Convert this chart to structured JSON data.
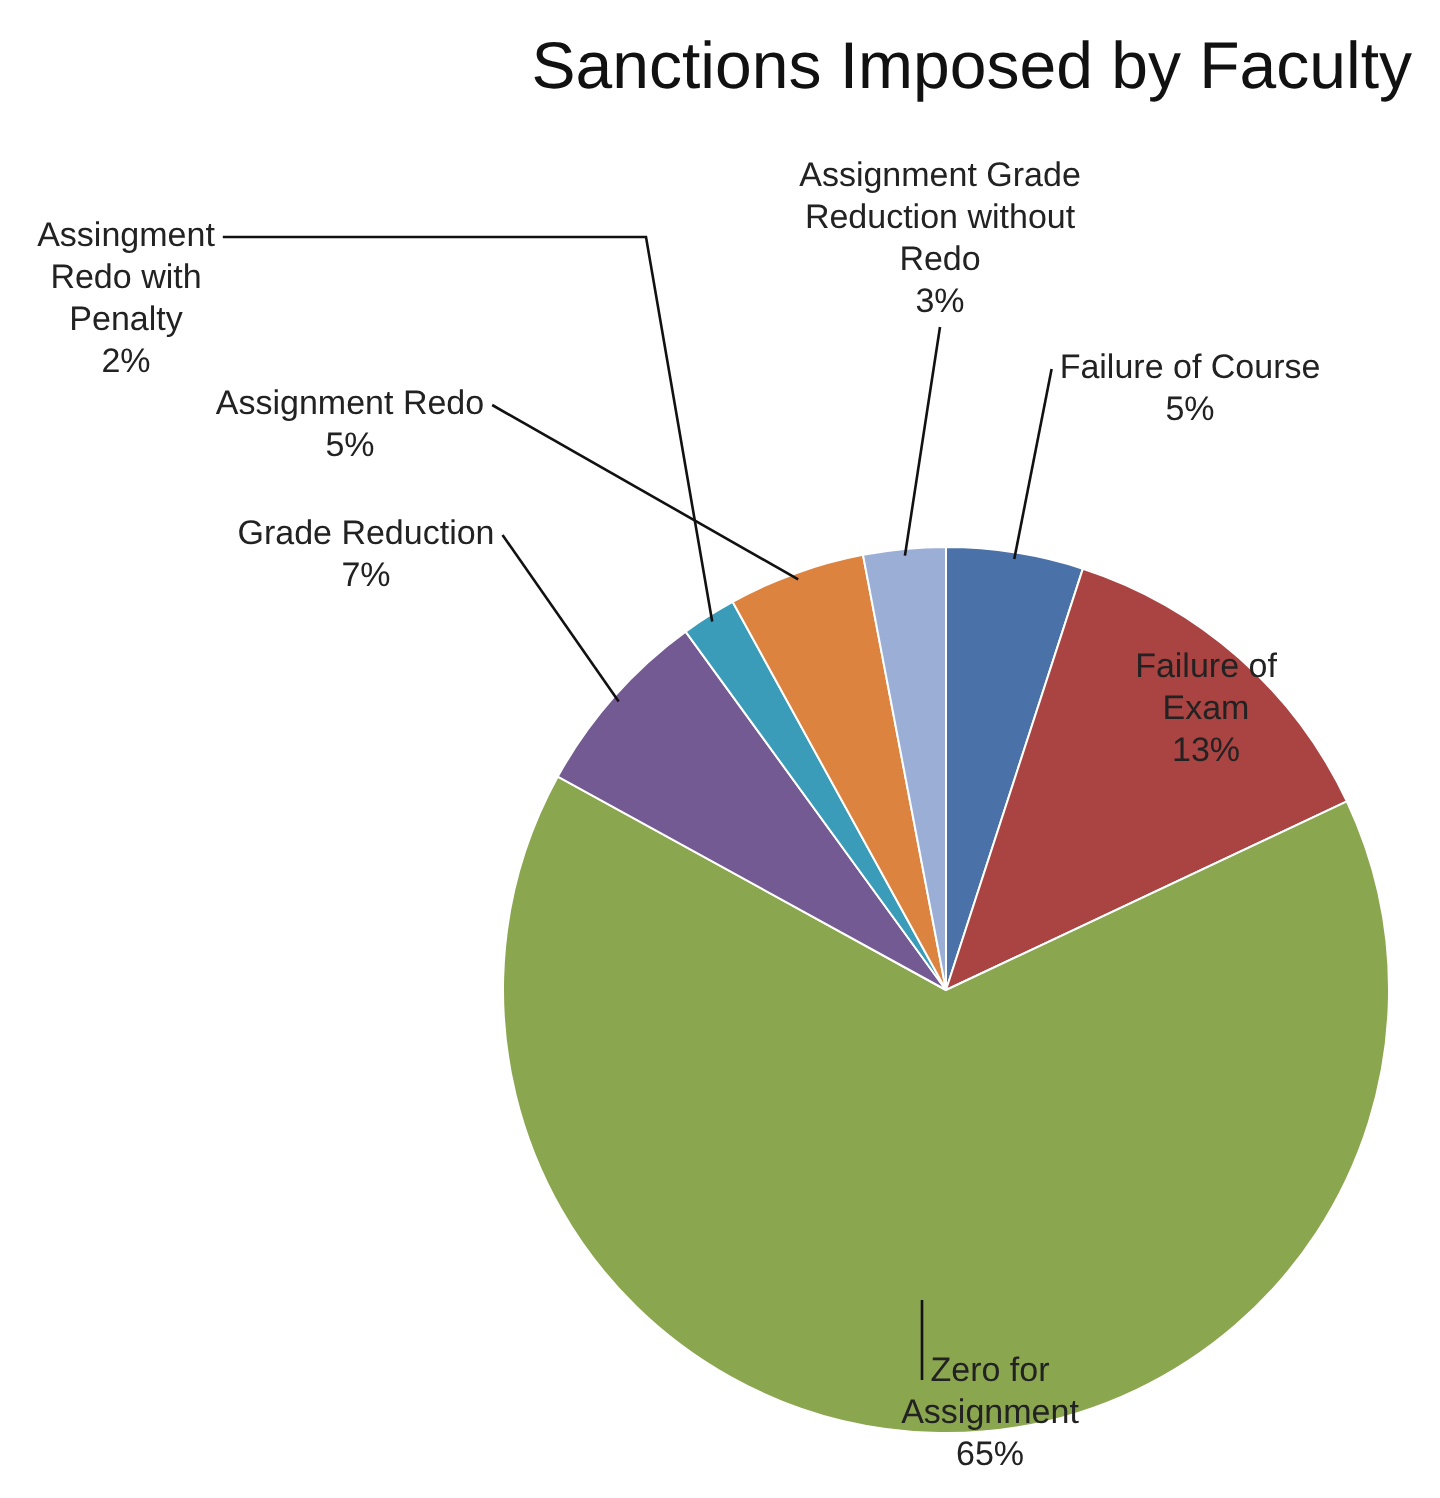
{
  "chart_data": {
    "type": "pie",
    "title": "Sanctions Imposed by Faculty",
    "categories": [
      "Failure of Course",
      "Failure of Exam",
      "Zero for Assignment",
      "Grade Reduction",
      "Assingment Redo with Penalty",
      "Assignment Redo",
      "Assignment Grade Reduction without Redo"
    ],
    "values": [
      5,
      13,
      65,
      7,
      2,
      5,
      3
    ],
    "value_labels": [
      "5%",
      "13%",
      "65%",
      "7%",
      "2%",
      "5%",
      "3%"
    ],
    "colors": [
      "#4a72a8",
      "#a94442",
      "#8aa64e",
      "#735a92",
      "#3a9cb8",
      "#dd8340",
      "#9aaed6"
    ],
    "legend": false
  }
}
